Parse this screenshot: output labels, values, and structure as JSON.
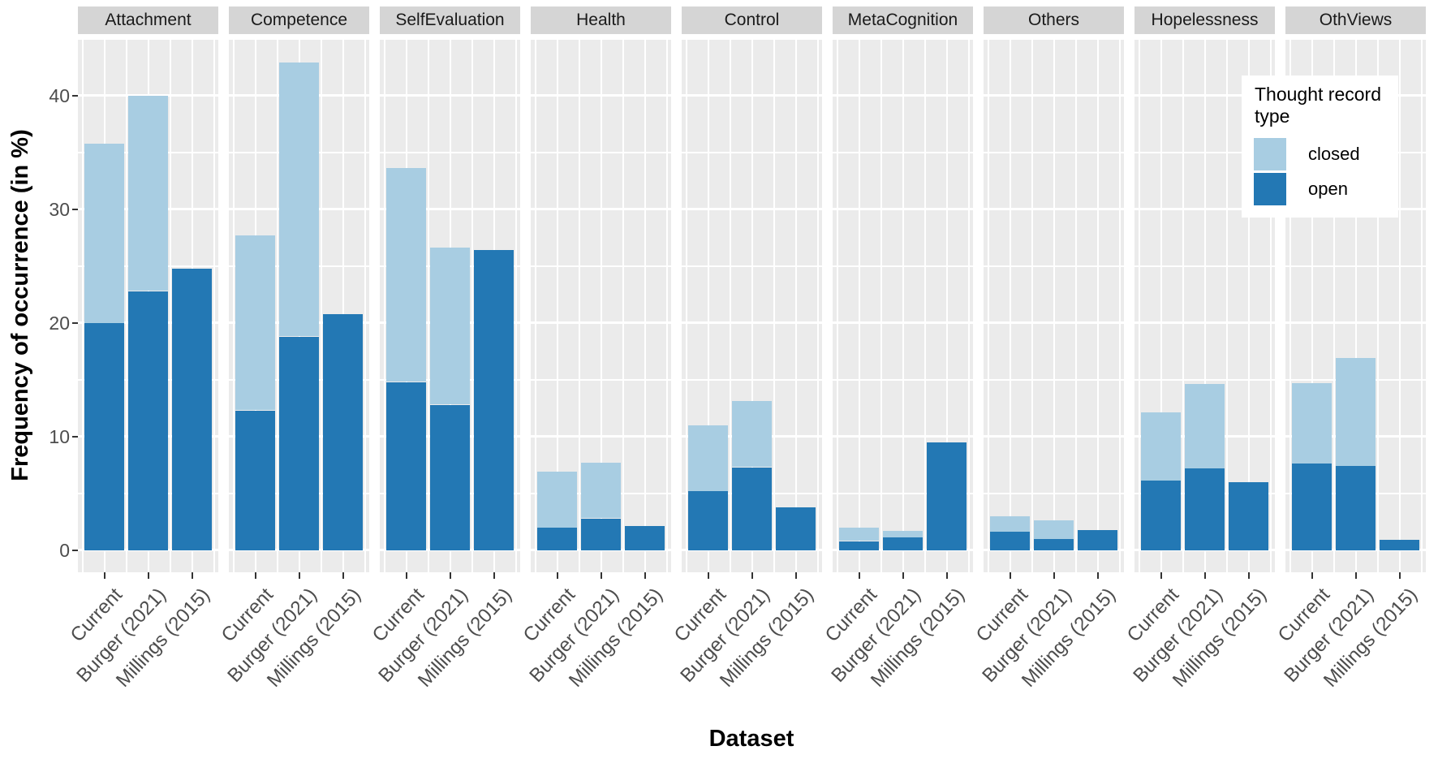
{
  "chart_data": {
    "type": "bar",
    "stacked": true,
    "xlabel": "Dataset",
    "ylabel": "Frequency of occurrence (in %)",
    "facets": [
      "Attachment",
      "Competence",
      "SelfEvaluation",
      "Health",
      "Control",
      "MetaCognition",
      "Others",
      "Hopelessness",
      "OthViews"
    ],
    "categories": [
      "Current",
      "Burger (2021)",
      "Millings (2015)"
    ],
    "stack_order_bottom_to_top": [
      "open",
      "closed"
    ],
    "series": [
      {
        "name": "open",
        "color": "#2378b4",
        "values": {
          "Attachment": [
            20.0,
            22.8,
            24.8
          ],
          "Competence": [
            12.3,
            18.8,
            20.8
          ],
          "SelfEvaluation": [
            14.8,
            12.8,
            26.4
          ],
          "Health": [
            2.0,
            2.8,
            2.1
          ],
          "Control": [
            5.2,
            7.3,
            3.8
          ],
          "MetaCognition": [
            0.8,
            1.1,
            9.5
          ],
          "Others": [
            1.6,
            1.0,
            1.8
          ],
          "Hopelessness": [
            6.1,
            7.2,
            6.0
          ],
          "OthViews": [
            7.6,
            7.4,
            0.9
          ]
        }
      },
      {
        "name": "closed",
        "color": "#a8cde2",
        "values": {
          "Attachment": [
            15.8,
            17.2,
            0
          ],
          "Competence": [
            15.4,
            24.1,
            0
          ],
          "SelfEvaluation": [
            18.8,
            13.8,
            0
          ],
          "Health": [
            4.9,
            4.9,
            0
          ],
          "Control": [
            5.8,
            5.8,
            0
          ],
          "MetaCognition": [
            1.2,
            0.6,
            0
          ],
          "Others": [
            1.4,
            1.6,
            0
          ],
          "Hopelessness": [
            6.0,
            7.4,
            0
          ],
          "OthViews": [
            7.1,
            9.5,
            0
          ]
        }
      }
    ],
    "y_ticks": [
      0,
      10,
      20,
      30,
      40
    ],
    "y_minor_ticks": [
      5,
      15,
      25,
      35,
      45
    ],
    "ylim": [
      -2,
      45
    ],
    "grid": true,
    "legend": {
      "title": "Thought record\n type",
      "position": "inside top-right",
      "items": [
        {
          "label": "closed",
          "color": "#a8cde2"
        },
        {
          "label": "open",
          "color": "#2378b4"
        }
      ]
    },
    "panel_background": "#ebebeb",
    "strip_background": "#d5d5d5",
    "gridline_color": "#ffffff",
    "axis_text_color": "#4d4d4d"
  }
}
